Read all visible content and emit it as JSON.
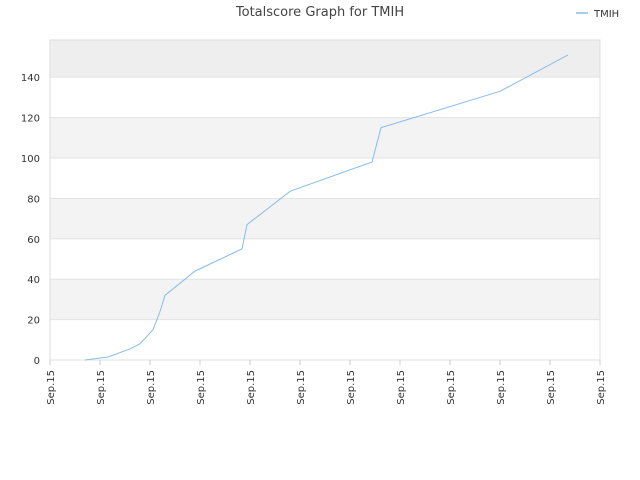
{
  "chart_data": {
    "type": "line",
    "title": "Totalscore Graph for TMIH",
    "x": [
      0.7,
      1.16,
      1.6,
      1.8,
      2.06,
      2.2,
      2.3,
      2.9,
      3.84,
      3.94,
      4.8,
      6.44,
      6.62,
      9.0,
      10.36
    ],
    "series": [
      {
        "name": "TMIH",
        "color": "#88bbee",
        "values": [
          0,
          1.5,
          5.5,
          8,
          15,
          24,
          32,
          44,
          55,
          67,
          83.5,
          98,
          115,
          133,
          151
        ]
      }
    ],
    "xlim": [
      0,
      11
    ],
    "xticks": [
      {
        "value": 0,
        "label": "Sep.15"
      },
      {
        "value": 1,
        "label": "Sep.15"
      },
      {
        "value": 2,
        "label": "Sep.15"
      },
      {
        "value": 3,
        "label": "Sep.15"
      },
      {
        "value": 4,
        "label": "Sep.15"
      },
      {
        "value": 5,
        "label": "Sep.15"
      },
      {
        "value": 6,
        "label": "Sep.15"
      },
      {
        "value": 7,
        "label": "Sep.15"
      },
      {
        "value": 8,
        "label": "Sep.15"
      },
      {
        "value": 9,
        "label": "Sep.15"
      },
      {
        "value": 10,
        "label": "Sep.15"
      },
      {
        "value": 11,
        "label": "Sep.15"
      }
    ],
    "ylim": [
      0,
      158.4
    ],
    "yticks": [
      0,
      20,
      40,
      60,
      80,
      100,
      120,
      140
    ],
    "grid": true,
    "legend": "top-right"
  }
}
